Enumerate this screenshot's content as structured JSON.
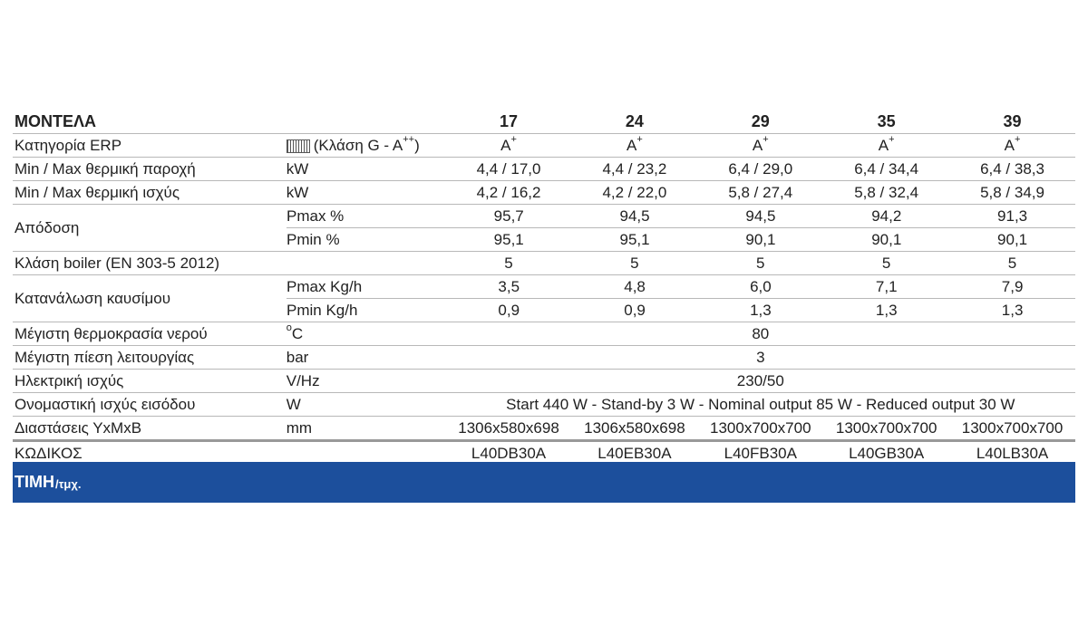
{
  "header": {
    "label": "ΜΟΝΤΕΛΑ",
    "models": [
      "17",
      "24",
      "29",
      "35",
      "39"
    ]
  },
  "erp": {
    "label": "Κατηγορία ERP",
    "unit": "(Κλάση G - A",
    "unit_sup": "++",
    "unit_close": ")",
    "value": "A",
    "value_sup": "+"
  },
  "heat_output": {
    "label": "Min / Max θερμική παροχή",
    "unit": "kW",
    "values": [
      "4,4 / 17,0",
      "4,4 / 23,2",
      "6,4 / 29,0",
      "6,4 / 34,4",
      "6,4 / 38,3"
    ]
  },
  "heat_power": {
    "label": "Min / Max θερμική ισχύς",
    "unit": "kW",
    "values": [
      "4,2 / 16,2",
      "4,2 / 22,0",
      "5,8 / 27,4",
      "5,8 / 32,4",
      "5,8 / 34,9"
    ]
  },
  "efficiency": {
    "label": "Απόδοση",
    "pmax": {
      "unit": "Pmax %",
      "values": [
        "95,7",
        "94,5",
        "94,5",
        "94,2",
        "91,3"
      ]
    },
    "pmin": {
      "unit": "Pmin %",
      "values": [
        "95,1",
        "95,1",
        "90,1",
        "90,1",
        "90,1"
      ]
    }
  },
  "boiler_class": {
    "label": "Κλάση boiler (EN 303-5 2012)",
    "values": [
      "5",
      "5",
      "5",
      "5",
      "5"
    ]
  },
  "fuel": {
    "label": "Κατανάλωση καυσίμου",
    "pmax": {
      "unit": "Pmax Kg/h",
      "values": [
        "3,5",
        "4,8",
        "6,0",
        "7,1",
        "7,9"
      ]
    },
    "pmin": {
      "unit": "Pmin Kg/h",
      "values": [
        "0,9",
        "0,9",
        "1,3",
        "1,3",
        "1,3"
      ]
    }
  },
  "max_temp": {
    "label": "Μέγιστη θερμοκρασία νερού",
    "unit_sup": "o",
    "unit": "C",
    "value": "80"
  },
  "max_pressure": {
    "label": "Μέγιστη πίεση λειτουργίας",
    "unit": "bar",
    "value": "3"
  },
  "electric": {
    "label": "Ηλεκτρική ισχύς",
    "unit": "V/Hz",
    "value": "230/50"
  },
  "input_power": {
    "label": "Ονομαστική ισχύς εισόδου",
    "unit": "W",
    "value": "Start 440 W - Stand-by 3 W - Nominal output 85 W - Reduced output 30 W"
  },
  "dimensions": {
    "label": "Διαστάσεις ΥxΜxΒ",
    "unit": "mm",
    "values": [
      "1306x580x698",
      "1306x580x698",
      "1300x700x700",
      "1300x700x700",
      "1300x700x700"
    ]
  },
  "codes": {
    "label": "ΚΩΔΙΚΟΣ",
    "values": [
      "L40DB30A",
      "L40EB30A",
      "L40FB30A",
      "L40GB30A",
      "L40LB30A"
    ]
  },
  "price": {
    "label": "ΤΙΜΗ",
    "suffix": "/τμχ."
  }
}
